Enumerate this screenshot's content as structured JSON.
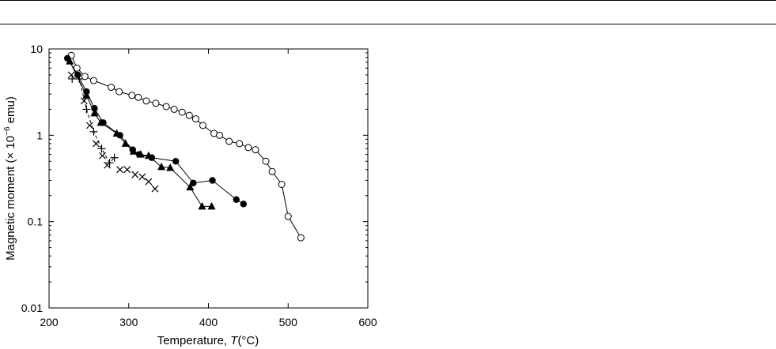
{
  "chart_data": {
    "type": "scatter",
    "xlabel_main": "Temperature, ",
    "xlabel_var": "T",
    "xlabel_unit": "(°C)",
    "ylabel_main": "Magnetic moment (× 10",
    "ylabel_exp": "−6",
    "ylabel_unit": " emu)",
    "xlim": [
      200,
      600
    ],
    "ylim": [
      0.01,
      10
    ],
    "yscale": "log",
    "grid": false,
    "x_ticks": [
      200,
      300,
      400,
      500,
      600
    ],
    "x_tick_labels": [
      "200",
      "300",
      "400",
      "500",
      "600"
    ],
    "y_ticks": [
      0.01,
      0.1,
      1,
      10
    ],
    "y_tick_labels": [
      "0.01",
      "0.1",
      "1",
      "10"
    ],
    "series": [
      {
        "marker": "open-circle",
        "line": "solid",
        "points": [
          [
            228,
            8.4
          ],
          [
            235,
            6.0
          ],
          [
            245,
            4.8
          ],
          [
            256,
            4.3
          ],
          [
            278,
            3.6
          ],
          [
            288,
            3.2
          ],
          [
            304,
            2.9
          ],
          [
            312,
            2.75
          ],
          [
            322,
            2.5
          ],
          [
            334,
            2.35
          ],
          [
            347,
            2.15
          ],
          [
            357,
            2.0
          ],
          [
            367,
            1.85
          ],
          [
            376,
            1.7
          ],
          [
            384,
            1.55
          ],
          [
            393,
            1.3
          ],
          [
            407,
            1.05
          ],
          [
            414,
            1.0
          ],
          [
            426,
            0.85
          ],
          [
            439,
            0.8
          ],
          [
            450,
            0.72
          ],
          [
            459,
            0.68
          ],
          [
            472,
            0.5
          ],
          [
            480,
            0.38
          ],
          [
            492,
            0.27
          ],
          [
            500,
            0.115
          ],
          [
            516,
            0.065
          ]
        ]
      },
      {
        "marker": "filled-circle",
        "line": "solid",
        "points": [
          [
            223,
            7.8
          ],
          [
            236,
            5.0
          ],
          [
            247,
            3.2
          ],
          [
            257,
            2.05
          ],
          [
            268,
            1.4
          ],
          [
            289,
            1.0
          ],
          [
            305,
            0.68
          ],
          [
            313,
            0.6
          ],
          [
            329,
            0.55
          ],
          [
            359,
            0.5
          ],
          [
            381,
            0.28
          ],
          [
            405,
            0.3
          ],
          [
            435,
            0.18
          ],
          [
            444,
            0.16
          ]
        ]
      },
      {
        "marker": "filled-triangle",
        "line": "solid",
        "points": [
          [
            226,
            7.2
          ],
          [
            247,
            2.9
          ],
          [
            257,
            1.8
          ],
          [
            265,
            1.4
          ],
          [
            285,
            1.05
          ],
          [
            296,
            0.8
          ],
          [
            306,
            0.65
          ],
          [
            315,
            0.6
          ],
          [
            325,
            0.58
          ],
          [
            341,
            0.43
          ],
          [
            352,
            0.42
          ],
          [
            377,
            0.25
          ],
          [
            392,
            0.15
          ],
          [
            404,
            0.15
          ]
        ]
      },
      {
        "marker": "plus",
        "line": "dashed",
        "points": [
          [
            229,
            4.5
          ],
          [
            238,
            4.5
          ],
          [
            247,
            2.0
          ],
          [
            256,
            1.1
          ],
          [
            266,
            0.7
          ],
          [
            276,
            0.48
          ],
          [
            282,
            0.55
          ]
        ]
      },
      {
        "marker": "cross",
        "line": "none",
        "points": [
          [
            228,
            5.0
          ],
          [
            244,
            2.5
          ],
          [
            251,
            1.3
          ],
          [
            259,
            0.8
          ],
          [
            267,
            0.58
          ],
          [
            273,
            0.45
          ],
          [
            289,
            0.4
          ],
          [
            298,
            0.4
          ],
          [
            308,
            0.35
          ],
          [
            317,
            0.33
          ],
          [
            325,
            0.29
          ],
          [
            333,
            0.24
          ]
        ]
      }
    ]
  }
}
